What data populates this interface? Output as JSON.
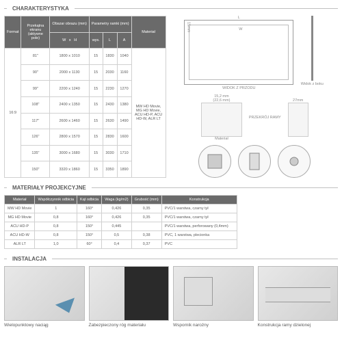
{
  "sections": {
    "char": "CHARAKTERYSTYKA",
    "mat": "MATERIAŁY PROJEKCYJNE",
    "inst": "INSTALACJA"
  },
  "charHdr": {
    "format": "Format",
    "diag": "Przekątna ekranu (aktywne pole)",
    "dims": "Obszar obrazu (mm)",
    "params": "Parametry ramki (mm)",
    "material": "Materiał",
    "w": "W",
    "h": "H",
    "wys": "wys.",
    "l": "L",
    "a": "A"
  },
  "charFormat": "16:9",
  "charRows": [
    {
      "d": "81\"",
      "w": "1800 x 1010",
      "wy": "15",
      "l": "1830",
      "a": "1040"
    },
    {
      "d": "90\"",
      "w": "2000 x 1130",
      "wy": "15",
      "l": "2030",
      "a": "1160"
    },
    {
      "d": "99\"",
      "w": "2200 x 1240",
      "wy": "15",
      "l": "2230",
      "a": "1270"
    },
    {
      "d": "108\"",
      "w": "2400 x 1350",
      "wy": "15",
      "l": "2430",
      "a": "1380"
    },
    {
      "d": "117\"",
      "w": "2600 x 1460",
      "wy": "15",
      "l": "2630",
      "a": "1490"
    },
    {
      "d": "126\"",
      "w": "2800 x 1570",
      "wy": "15",
      "l": "2830",
      "a": "1600"
    },
    {
      "d": "135\"",
      "w": "3000 x 1680",
      "wy": "15",
      "l": "3030",
      "a": "1710"
    },
    {
      "d": "150\"",
      "w": "3320 x 1860",
      "wy": "15",
      "l": "3350",
      "a": "1890"
    }
  ],
  "charMat": "MW HD Movie, MG HD Movie, ACU HD-P, ACU HD-W, ALR LT",
  "diag": {
    "front": "WIDOK Z PRZODU",
    "side": "Widok z boku",
    "cross": "PRZEKRÓJ RAMY",
    "matlbl": "Materiał",
    "d1": "15,2 mm",
    "d2": "(22,6 mm)",
    "d3": "27mm"
  },
  "matHdr": {
    "m": "Materiał",
    "g": "Współczynnik odbicia",
    "a": "Kąt odbicia",
    "w": "Waga (kg/m2)",
    "t": "Grubość (mm)",
    "c": "Konstrukcja"
  },
  "matRows": [
    {
      "m": "MW HD Movie",
      "g": "1",
      "a": "160°",
      "w": "0,426",
      "t": "0,35",
      "c": "PVC/1 warstwa, czarny tył"
    },
    {
      "m": "MG HD Movie",
      "g": "0,8",
      "a": "160°",
      "w": "0,426",
      "t": "0,35",
      "c": "PVC/1 warstwa, czarny tył"
    },
    {
      "m": "ACU HD-P",
      "g": "0,8",
      "a": "150°",
      "w": "0,445",
      "t": "",
      "c": "PVC/1 warstwa, perforowany (0,4mm)"
    },
    {
      "m": "ACU HD-W",
      "g": "0,8",
      "a": "150°",
      "w": "0,5",
      "t": "0,38",
      "c": "PVC, 1 warstwa, plecionka"
    },
    {
      "m": "ALR LT",
      "g": "1,0",
      "a": "60°",
      "w": "0,4",
      "t": "0,37",
      "c": "PVC"
    }
  ],
  "install": [
    {
      "cap": "Wielopunktowy naciąg"
    },
    {
      "cap": "Zabezpieczony róg materiału"
    },
    {
      "cap": "Wspornik narożny"
    },
    {
      "cap": "Konstrukcja ramy dzielonej"
    }
  ]
}
